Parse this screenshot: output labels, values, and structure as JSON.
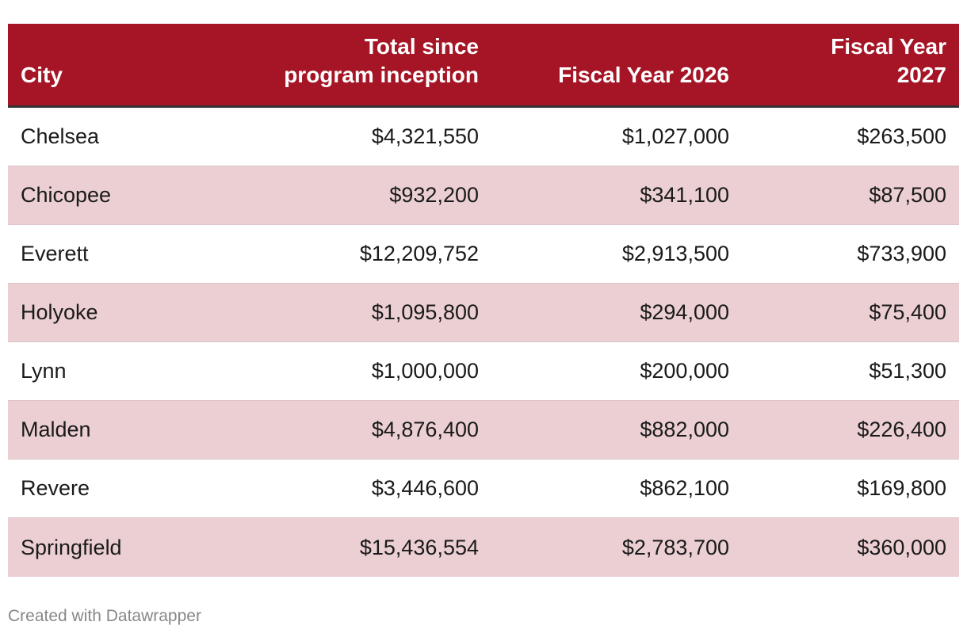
{
  "chart_data": {
    "type": "table",
    "columns": [
      "City",
      "Total since program inception",
      "Fiscal Year 2026",
      "Fiscal Year 2027"
    ],
    "rows": [
      {
        "city": "Chelsea",
        "total": "$4,321,550",
        "fy2026": "$1,027,000",
        "fy2027": "$263,500"
      },
      {
        "city": "Chicopee",
        "total": "$932,200",
        "fy2026": "$341,100",
        "fy2027": "$87,500"
      },
      {
        "city": "Everett",
        "total": "$12,209,752",
        "fy2026": "$2,913,500",
        "fy2027": "$733,900"
      },
      {
        "city": "Holyoke",
        "total": "$1,095,800",
        "fy2026": "$294,000",
        "fy2027": "$75,400"
      },
      {
        "city": "Lynn",
        "total": "$1,000,000",
        "fy2026": "$200,000",
        "fy2027": "$51,300"
      },
      {
        "city": "Malden",
        "total": "$4,876,400",
        "fy2026": "$882,000",
        "fy2027": "$226,400"
      },
      {
        "city": "Revere",
        "total": "$3,446,600",
        "fy2026": "$862,100",
        "fy2027": "$169,800"
      },
      {
        "city": "Springfield",
        "total": "$15,436,554",
        "fy2026": "$2,783,700",
        "fy2027": "$360,000"
      }
    ]
  },
  "footer": {
    "credit": "Created with Datawrapper"
  },
  "colors": {
    "header_bg": "#a51526",
    "row_shade": "#ebcfd3"
  }
}
